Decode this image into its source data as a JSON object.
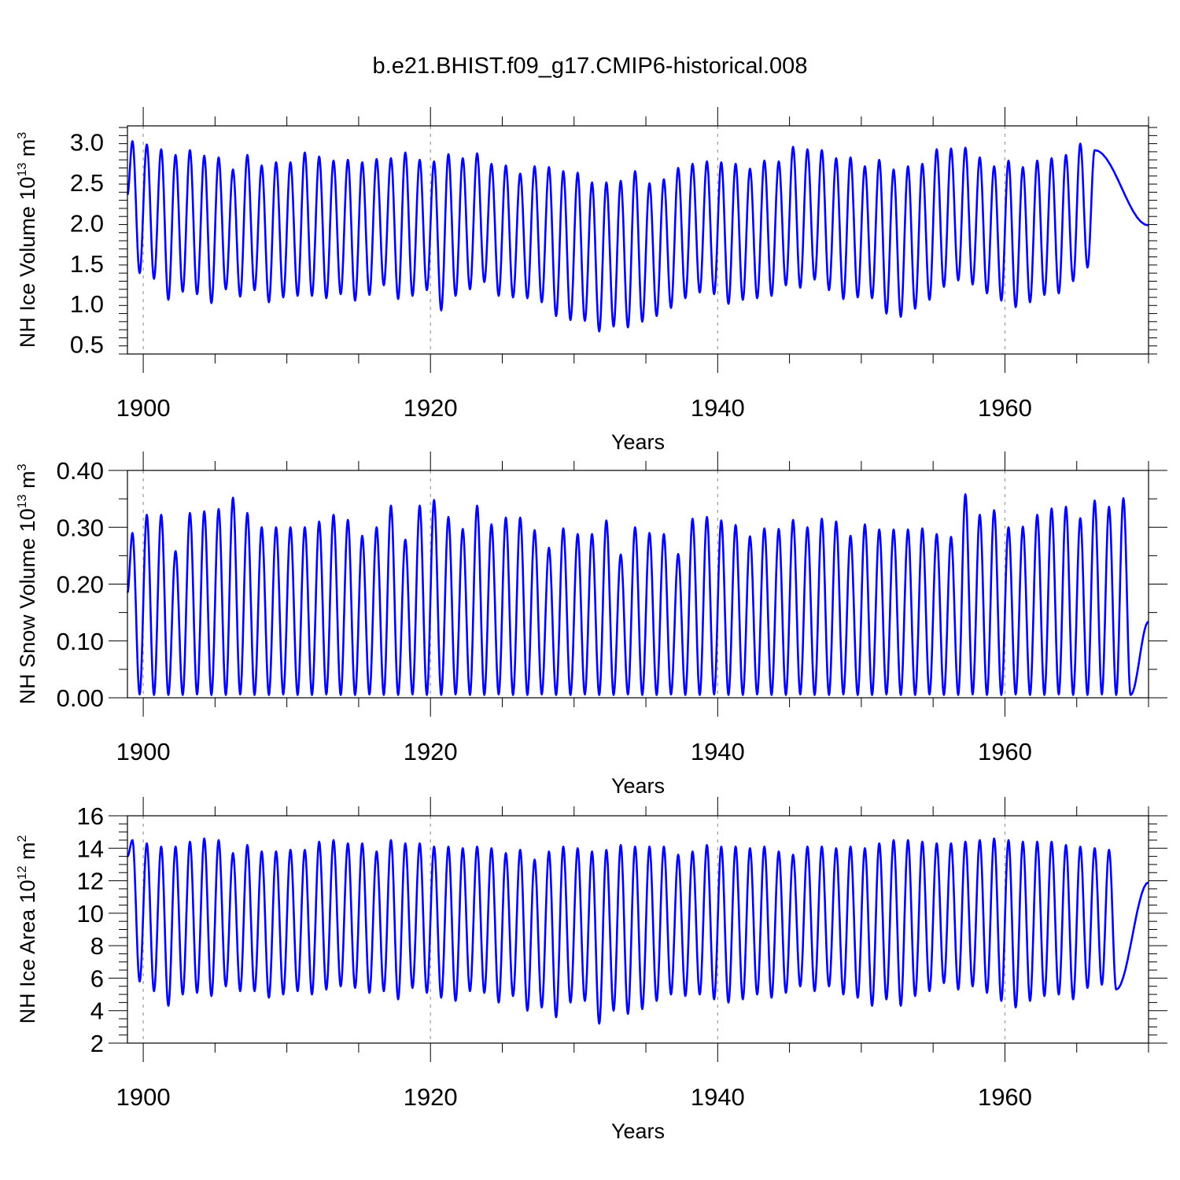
{
  "title": "b.e21.BHIST.f09_g17.CMIP6-historical.008",
  "colors": {
    "series": "#0000ff",
    "axis": "#000000",
    "refline": "#9a9a9a"
  },
  "chart_data": [
    {
      "type": "line",
      "name": "ice-volume",
      "ylabel_main": "NH Ice Volume 10",
      "ylabel_sup": "13",
      "ylabel_unit": " m",
      "ylabel_unit_sup": "3",
      "xlabel": "Years",
      "xlim": [
        1898.9,
        1970.0
      ],
      "ylim": [
        0.38,
        3.2
      ],
      "xticks": [
        1900,
        1920,
        1940,
        1960
      ],
      "xtick_labels": [
        "1900",
        "1920",
        "1940",
        "1960"
      ],
      "yticks": [
        0.5,
        1.0,
        1.5,
        2.0,
        2.5,
        3.0
      ],
      "ytick_labels": [
        "0.5",
        "1.0",
        "1.5",
        "2.0",
        "2.5",
        "3.0"
      ],
      "yminor": 0.1,
      "ref_lines_x": [
        1900,
        1920,
        1940,
        1960
      ],
      "series_start": {
        "year": 1898.9,
        "value": 2.35
      },
      "series_end": {
        "year": 1970.0,
        "value": 1.97
      },
      "annual_max": [
        3.01,
        2.97,
        2.91,
        2.84,
        2.9,
        2.83,
        2.81,
        2.66,
        2.84,
        2.71,
        2.75,
        2.75,
        2.87,
        2.82,
        2.77,
        2.78,
        2.75,
        2.79,
        2.8,
        2.87,
        2.78,
        2.76,
        2.85,
        2.8,
        2.86,
        2.73,
        2.71,
        2.61,
        2.7,
        2.69,
        2.64,
        2.62,
        2.5,
        2.5,
        2.52,
        2.64,
        2.49,
        2.54,
        2.68,
        2.73,
        2.76,
        2.75,
        2.73,
        2.67,
        2.77,
        2.76,
        2.94,
        2.91,
        2.9,
        2.8,
        2.81,
        2.7,
        2.78,
        2.66,
        2.7,
        2.73,
        2.91,
        2.92,
        2.93,
        2.81,
        2.7,
        2.77,
        2.69,
        2.77,
        2.8,
        2.84,
        2.98,
        2.9
      ],
      "annual_min": [
        1.38,
        1.31,
        1.05,
        1.15,
        1.12,
        1.01,
        1.18,
        1.09,
        1.17,
        1.02,
        1.08,
        1.1,
        1.1,
        1.07,
        1.12,
        1.04,
        1.11,
        1.23,
        1.06,
        1.1,
        1.17,
        0.92,
        1.1,
        1.18,
        1.27,
        1.1,
        1.08,
        1.07,
        1.02,
        0.85,
        0.8,
        0.79,
        0.66,
        0.72,
        0.71,
        0.78,
        0.85,
        0.95,
        1.07,
        1.14,
        1.12,
        1.0,
        1.05,
        1.07,
        1.1,
        1.23,
        1.2,
        1.3,
        1.17,
        1.06,
        1.08,
        1.07,
        0.88,
        0.84,
        0.94,
        1.05,
        1.21,
        1.29,
        1.24,
        1.13,
        1.04,
        0.96,
        1.02,
        1.11,
        1.13,
        1.28,
        1.45
      ]
    },
    {
      "type": "line",
      "name": "snow-volume",
      "ylabel_main": "NH Snow Volume 10",
      "ylabel_sup": "13",
      "ylabel_unit": " m",
      "ylabel_unit_sup": "3",
      "xlabel": "Years",
      "xlim": [
        1898.9,
        1970.0
      ],
      "ylim": [
        0.0,
        0.4
      ],
      "xticks": [
        1900,
        1920,
        1940,
        1960
      ],
      "xtick_labels": [
        "1900",
        "1920",
        "1940",
        "1960"
      ],
      "yticks": [
        0.0,
        0.1,
        0.2,
        0.3,
        0.4
      ],
      "ytick_labels": [
        "0.00",
        "0.10",
        "0.20",
        "0.30",
        "0.40"
      ],
      "yminor": 0.05,
      "ref_lines_x": [
        1900,
        1920,
        1940,
        1960
      ],
      "series_start": {
        "year": 1898.9,
        "value": 0.185
      },
      "series_end": {
        "year": 1970.0,
        "value": 0.134
      },
      "annual_max": [
        0.29,
        0.322,
        0.322,
        0.258,
        0.325,
        0.328,
        0.332,
        0.352,
        0.325,
        0.3,
        0.3,
        0.3,
        0.3,
        0.31,
        0.322,
        0.313,
        0.285,
        0.3,
        0.338,
        0.278,
        0.338,
        0.348,
        0.318,
        0.297,
        0.338,
        0.305,
        0.317,
        0.317,
        0.295,
        0.264,
        0.298,
        0.288,
        0.288,
        0.312,
        0.252,
        0.3,
        0.29,
        0.288,
        0.253,
        0.315,
        0.318,
        0.312,
        0.304,
        0.284,
        0.298,
        0.297,
        0.313,
        0.3,
        0.315,
        0.31,
        0.285,
        0.305,
        0.296,
        0.296,
        0.296,
        0.298,
        0.288,
        0.283,
        0.358,
        0.322,
        0.33,
        0.3,
        0.301,
        0.322,
        0.333,
        0.336,
        0.316,
        0.347,
        0.336,
        0.351
      ],
      "annual_min": [
        0.006,
        0.005,
        0.005,
        0.005,
        0.006,
        0.005,
        0.005,
        0.006,
        0.005,
        0.005,
        0.006,
        0.005,
        0.005,
        0.006,
        0.005,
        0.005,
        0.006,
        0.005,
        0.005,
        0.006,
        0.005,
        0.005,
        0.006,
        0.005,
        0.005,
        0.006,
        0.005,
        0.005,
        0.006,
        0.005,
        0.005,
        0.006,
        0.005,
        0.005,
        0.006,
        0.005,
        0.005,
        0.006,
        0.005,
        0.005,
        0.006,
        0.005,
        0.005,
        0.006,
        0.005,
        0.005,
        0.006,
        0.005,
        0.005,
        0.006,
        0.005,
        0.005,
        0.006,
        0.005,
        0.005,
        0.006,
        0.005,
        0.005,
        0.006,
        0.005,
        0.005,
        0.006,
        0.005,
        0.005,
        0.006,
        0.005,
        0.005,
        0.006,
        0.005,
        0.005
      ]
    },
    {
      "type": "line",
      "name": "ice-area",
      "ylabel_main": "NH Ice Area 10",
      "ylabel_sup": "12",
      "ylabel_unit": " m",
      "ylabel_unit_sup": "2",
      "xlabel": "Years",
      "xlim": [
        1898.9,
        1970.0
      ],
      "ylim": [
        2.0,
        16.0
      ],
      "xticks": [
        1900,
        1920,
        1940,
        1960
      ],
      "xtick_labels": [
        "1900",
        "1920",
        "1940",
        "1960"
      ],
      "yticks": [
        2,
        4,
        6,
        8,
        10,
        12,
        14,
        16
      ],
      "ytick_labels": [
        "2",
        "4",
        "6",
        "8",
        "10",
        "12",
        "14",
        "16"
      ],
      "yminor": 0.5,
      "ref_lines_x": [
        1900,
        1920,
        1940,
        1960
      ],
      "series_start": {
        "year": 1898.9,
        "value": 13.5
      },
      "series_end": {
        "year": 1970.0,
        "value": 11.9
      },
      "annual_max": [
        14.5,
        14.3,
        14.1,
        14.1,
        14.4,
        14.6,
        14.5,
        13.7,
        14.2,
        13.8,
        13.8,
        13.9,
        13.9,
        14.4,
        14.5,
        14.3,
        14.3,
        13.8,
        14.5,
        14.3,
        14.3,
        14.1,
        14.1,
        14.0,
        14.1,
        14.0,
        13.7,
        13.9,
        13.3,
        13.8,
        14.1,
        14.0,
        13.8,
        13.9,
        14.2,
        14.1,
        14.1,
        14.1,
        13.6,
        13.8,
        14.2,
        14.1,
        14.1,
        14.0,
        14.1,
        13.8,
        13.6,
        14.1,
        14.1,
        14.0,
        14.1,
        14.0,
        14.3,
        14.5,
        14.5,
        14.4,
        14.3,
        14.3,
        14.4,
        14.5,
        14.6,
        14.5,
        14.4,
        14.4,
        14.4,
        14.2,
        14.1,
        14.0,
        13.9
      ],
      "annual_min": [
        5.8,
        5.2,
        4.3,
        5.0,
        5.1,
        4.9,
        5.5,
        5.2,
        5.2,
        4.8,
        5.0,
        5.2,
        5.0,
        5.3,
        5.5,
        5.4,
        5.1,
        5.2,
        4.7,
        5.4,
        5.1,
        4.8,
        4.6,
        5.2,
        5.1,
        4.5,
        4.9,
        4.0,
        4.2,
        3.6,
        4.5,
        4.6,
        3.2,
        4.0,
        3.8,
        4.1,
        4.6,
        5.0,
        4.9,
        5.0,
        4.7,
        4.5,
        4.7,
        5.0,
        4.8,
        5.1,
        5.5,
        5.2,
        5.5,
        5.0,
        4.8,
        4.3,
        4.7,
        4.3,
        4.9,
        5.2,
        5.7,
        5.3,
        5.5,
        5.1,
        4.6,
        4.2,
        4.6,
        4.9,
        5.0,
        4.7,
        5.4,
        5.6,
        5.3
      ]
    }
  ]
}
